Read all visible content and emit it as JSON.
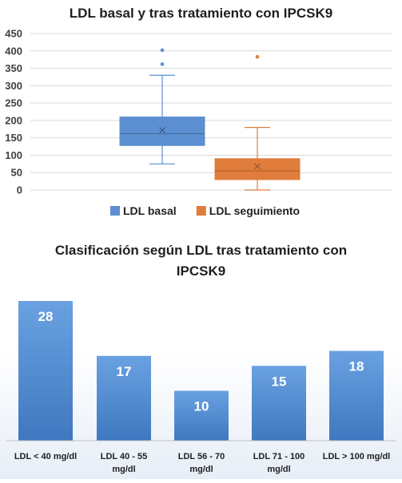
{
  "charts": [
    {
      "title": "LDL basal y tras tratamiento con IPCSK9",
      "legend": {
        "position": "bottom"
      }
    },
    {
      "title_lines": [
        "Clasificación según LDL tras tratamiento con",
        "IPCSK9"
      ]
    }
  ],
  "colors": {
    "basal": "#5b8fd1",
    "seguimiento": "#e07d3c",
    "bar": "#4a86cf",
    "grid": "#d9d9d9"
  },
  "chart_data": [
    {
      "type": "box",
      "title": "LDL basal y tras tratamiento con IPCSK9",
      "ylim": [
        0,
        450
      ],
      "yticks": [
        "0",
        "50",
        "100",
        "150",
        "200",
        "250",
        "300",
        "350",
        "400",
        "450"
      ],
      "grid": true,
      "legend_position": "bottom",
      "series": [
        {
          "name": "LDL basal",
          "min": 75,
          "q1": 128,
          "median": 162,
          "q3": 210,
          "max": 330,
          "mean": 172,
          "outliers": [
            362,
            402
          ]
        },
        {
          "name": "LDL seguimiento",
          "min": 0,
          "q1": 30,
          "median": 55,
          "q3": 90,
          "max": 180,
          "mean": 68,
          "outliers": [
            383
          ]
        }
      ]
    },
    {
      "type": "bar",
      "title": "Clasificación según LDL tras tratamiento con IPCSK9",
      "categories": [
        [
          "LDL < 40 mg/dl"
        ],
        [
          "LDL 40 - 55",
          "mg/dl"
        ],
        [
          "LDL 56 - 70",
          "mg/dl"
        ],
        [
          "LDL 71 - 100",
          "mg/dl"
        ],
        [
          "LDL > 100 mg/dl"
        ]
      ],
      "values": [
        28,
        17,
        10,
        15,
        18
      ],
      "value_labels": [
        "28",
        "17",
        "10",
        "15",
        "18"
      ],
      "grid": false
    }
  ]
}
